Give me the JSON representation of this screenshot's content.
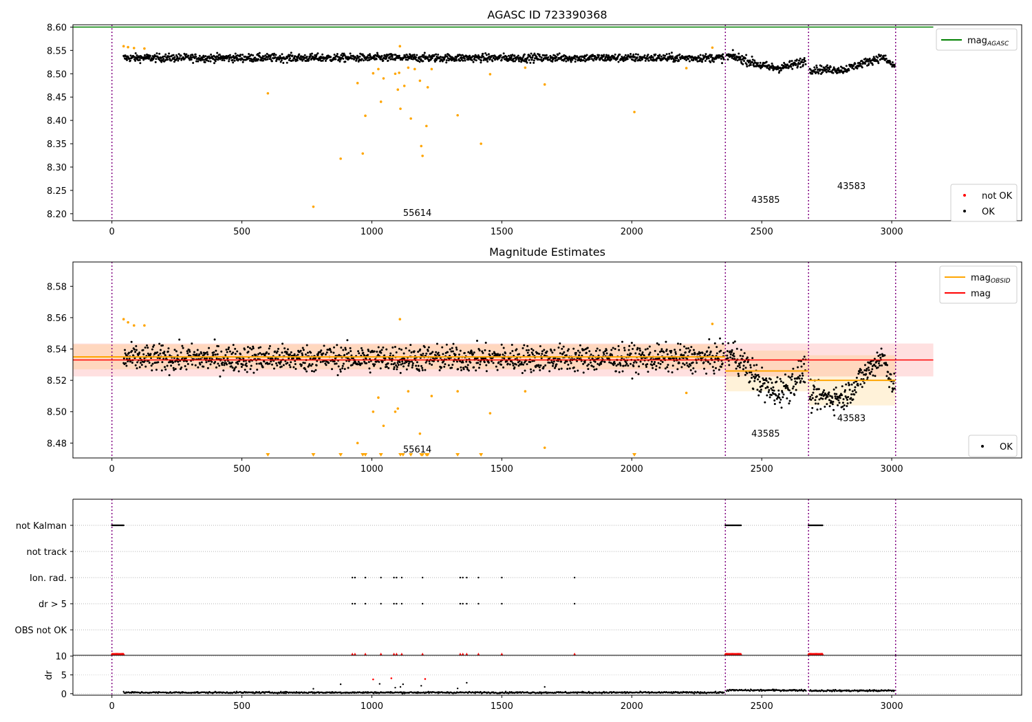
{
  "chart_data": [
    {
      "type": "scatter",
      "title": "AGASC ID 723390368",
      "xlim": [
        -150,
        3500
      ],
      "ylim": [
        8.185,
        8.605
      ],
      "xticks": [
        0,
        500,
        1000,
        1500,
        2000,
        2500,
        3000
      ],
      "yticks": [
        8.2,
        8.25,
        8.3,
        8.35,
        8.4,
        8.45,
        8.5,
        8.55,
        8.6
      ],
      "ytick_decimals": 2,
      "grid": false,
      "legends": [
        {
          "placement": "top-right",
          "entries": [
            {
              "label": "mag",
              "sub": "AGASC",
              "color": "#008000",
              "kind": "line"
            }
          ]
        },
        {
          "placement": "bottom-right",
          "entries": [
            {
              "label": "not OK",
              "color": "#ff0000",
              "kind": "dot"
            },
            {
              "label": "OK",
              "color": "#000000",
              "kind": "dot"
            }
          ]
        }
      ],
      "reference_lines": [
        {
          "name": "mag AGASC",
          "y": 8.6,
          "x": [
            -150,
            3160
          ],
          "color": "#008000"
        }
      ],
      "vlines": [
        0,
        2360,
        2680,
        3015
      ],
      "annotations": [
        {
          "text": "55614",
          "x": 1175,
          "y": 8.195
        },
        {
          "text": "43585",
          "x": 2515,
          "y": 8.223
        },
        {
          "text": "43583",
          "x": 2845,
          "y": 8.253
        }
      ],
      "ok_series": [
        {
          "x_start": 45,
          "x_end": 2355,
          "mean": 8.534,
          "spread": 0.012
        },
        {
          "x_start": 2365,
          "x_end": 2670,
          "mean": 8.525,
          "spread": 0.014
        },
        {
          "x_start": 2685,
          "x_end": 3012,
          "mean": 8.515,
          "spread": 0.012
        }
      ],
      "outliers": {
        "color": "#ffa500",
        "points": [
          [
            45,
            8.559
          ],
          [
            62,
            8.557
          ],
          [
            85,
            8.555
          ],
          [
            125,
            8.554
          ],
          [
            600,
            8.458
          ],
          [
            775,
            8.215
          ],
          [
            880,
            8.318
          ],
          [
            945,
            8.48
          ],
          [
            965,
            8.329
          ],
          [
            975,
            8.41
          ],
          [
            1005,
            8.501
          ],
          [
            1025,
            8.51
          ],
          [
            1035,
            8.44
          ],
          [
            1045,
            8.49
          ],
          [
            1090,
            8.5
          ],
          [
            1100,
            8.466
          ],
          [
            1110,
            8.425
          ],
          [
            1125,
            8.474
          ],
          [
            1140,
            8.513
          ],
          [
            1150,
            8.404
          ],
          [
            1165,
            8.51
          ],
          [
            1185,
            8.485
          ],
          [
            1190,
            8.345
          ],
          [
            1195,
            8.324
          ],
          [
            1210,
            8.388
          ],
          [
            1215,
            8.471
          ],
          [
            1230,
            8.51
          ],
          [
            1330,
            8.411
          ],
          [
            1420,
            8.35
          ],
          [
            1455,
            8.499
          ],
          [
            1590,
            8.513
          ],
          [
            1665,
            8.477
          ],
          [
            2010,
            8.418
          ],
          [
            2210,
            8.512
          ],
          [
            2310,
            8.556
          ],
          [
            1108,
            8.559
          ],
          [
            1105,
            8.502
          ]
        ]
      }
    },
    {
      "type": "scatter",
      "title": "Magnitude Estimates",
      "xlim": [
        -150,
        3500
      ],
      "ylim": [
        8.4705,
        8.5955
      ],
      "xticks": [
        0,
        500,
        1000,
        1500,
        2000,
        2500,
        3000
      ],
      "yticks": [
        8.48,
        8.5,
        8.52,
        8.54,
        8.56,
        8.58
      ],
      "ytick_decimals": 2,
      "grid": false,
      "legends": [
        {
          "placement": "top-right",
          "entries": [
            {
              "label": "mag",
              "sub": "OBSID",
              "color": "#ffa500",
              "kind": "line"
            },
            {
              "label": "mag",
              "sub": "",
              "color": "#ff0000",
              "kind": "line"
            }
          ]
        },
        {
          "placement": "bottom-right",
          "entries": [
            {
              "label": "OK",
              "color": "#000000",
              "kind": "dot"
            }
          ]
        }
      ],
      "mag_band": {
        "x": [
          -150,
          3160
        ],
        "y": 8.533,
        "lo": 8.5225,
        "hi": 8.5435
      },
      "obsid_mags": [
        {
          "x": [
            -150,
            2360
          ],
          "y": 8.535,
          "lo": 8.527,
          "hi": 8.543
        },
        {
          "x": [
            2360,
            2680
          ],
          "y": 8.526,
          "lo": 8.513,
          "hi": 8.539
        },
        {
          "x": [
            2680,
            3015
          ],
          "y": 8.52,
          "lo": 8.504,
          "hi": 8.536
        }
      ],
      "vlines": [
        0,
        2360,
        2680,
        3015
      ],
      "annotations": [
        {
          "text": "55614",
          "x": 1175,
          "y": 8.474
        },
        {
          "text": "43585",
          "x": 2515,
          "y": 8.484
        },
        {
          "text": "43583",
          "x": 2845,
          "y": 8.494
        }
      ],
      "ok_series": [
        {
          "x_start": 45,
          "x_end": 2355,
          "mean": 8.534,
          "spread": 0.012
        },
        {
          "x_start": 2365,
          "x_end": 2670,
          "mean": 8.525,
          "spread": 0.014
        },
        {
          "x_start": 2685,
          "x_end": 3012,
          "mean": 8.515,
          "spread": 0.012
        }
      ],
      "outliers": {
        "color": "#ffa500",
        "points": [
          [
            45,
            8.559
          ],
          [
            62,
            8.557
          ],
          [
            85,
            8.555
          ],
          [
            125,
            8.555
          ],
          [
            945,
            8.48
          ],
          [
            1005,
            8.5
          ],
          [
            1025,
            8.509
          ],
          [
            1045,
            8.491
          ],
          [
            1090,
            8.5
          ],
          [
            1100,
            8.502
          ],
          [
            1108,
            8.559
          ],
          [
            1140,
            8.513
          ],
          [
            1185,
            8.486
          ],
          [
            1230,
            8.51
          ],
          [
            1330,
            8.513
          ],
          [
            1455,
            8.499
          ],
          [
            1590,
            8.513
          ],
          [
            1665,
            8.477
          ],
          [
            2210,
            8.512
          ],
          [
            2310,
            8.556
          ]
        ]
      },
      "below_markers": [
        600,
        775,
        880,
        965,
        975,
        1035,
        1110,
        1120,
        1150,
        1190,
        1195,
        1210,
        1215,
        1330,
        1420,
        2010
      ]
    },
    {
      "type": "scatter",
      "title": "",
      "xlim": [
        -150,
        3500
      ],
      "xticks": [
        0,
        500,
        1000,
        1500,
        2000,
        2500,
        3000
      ],
      "flag_rows": [
        "not Kalman",
        "not track",
        "Ion. rad.",
        "dr > 5",
        "OBS not OK"
      ],
      "flags": {
        "not Kalman": [
          [
            0,
            45
          ],
          [
            2360,
            2420
          ],
          [
            2680,
            2735
          ]
        ],
        "not track": [],
        "Ion. rad.": [
          925,
          935,
          975,
          1035,
          1085,
          1095,
          1115,
          1195,
          1340,
          1350,
          1365,
          1410,
          1500,
          1780
        ],
        "dr > 5": [
          925,
          935,
          975,
          1035,
          1085,
          1095,
          1115,
          1195,
          1340,
          1350,
          1365,
          1410,
          1500,
          1780
        ],
        "OBS not OK": []
      },
      "dr": {
        "ylabel": "dr",
        "ylim": [
          -0.4,
          10.2
        ],
        "yticks": [
          0,
          5,
          10
        ],
        "clip_value": 10,
        "not_ok_points": [
          [
            1005,
            3.8
          ],
          [
            1075,
            4.1
          ],
          [
            1205,
            3.9
          ]
        ],
        "ok_spikes": [
          [
            775,
            1.3
          ],
          [
            880,
            2.5
          ],
          [
            1030,
            2.6
          ],
          [
            1090,
            1.6
          ],
          [
            1120,
            2.5
          ],
          [
            1110,
            1.8
          ],
          [
            1190,
            2.1
          ],
          [
            1365,
            2.9
          ],
          [
            1330,
            1.4
          ],
          [
            1665,
            1.8
          ]
        ]
      },
      "vlines": [
        0,
        2360,
        2680,
        3015
      ]
    }
  ]
}
